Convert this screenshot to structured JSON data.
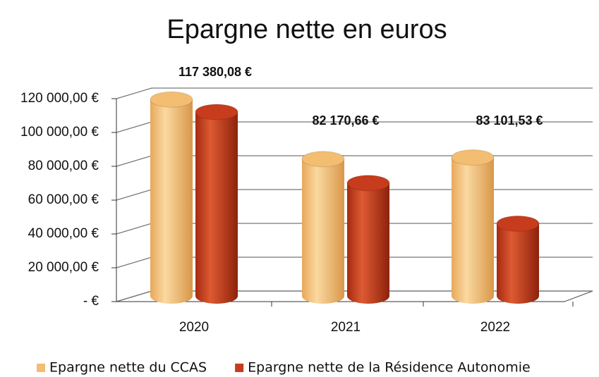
{
  "chart_data": {
    "type": "bar",
    "title": "Epargne nette en euros",
    "categories": [
      "2020",
      "2021",
      "2022"
    ],
    "series": [
      {
        "name": "Epargne nette du CCAS",
        "color": "#f3bd72",
        "values": [
          117380.08,
          82170.66,
          83101.53
        ],
        "value_labels": [
          "117 380,08 €",
          "82 170,66 €",
          "83 101,53 €"
        ]
      },
      {
        "name": "Epargne nette de la Résidence Autonomie",
        "color": "#c63c1c",
        "values": [
          110000,
          68000,
          44000
        ]
      }
    ],
    "ylim": [
      0,
      120000
    ],
    "yticks": [
      {
        "value": 0,
        "label": "- €"
      },
      {
        "value": 20000,
        "label": "20 000,00 €"
      },
      {
        "value": 40000,
        "label": "40 000,00 €"
      },
      {
        "value": 60000,
        "label": "60 000,00 €"
      },
      {
        "value": 80000,
        "label": "80 000,00 €"
      },
      {
        "value": 100000,
        "label": "100 000,00 €"
      },
      {
        "value": 120000,
        "label": "120 000,00 €"
      }
    ],
    "grid": true,
    "legend": "bottom"
  }
}
